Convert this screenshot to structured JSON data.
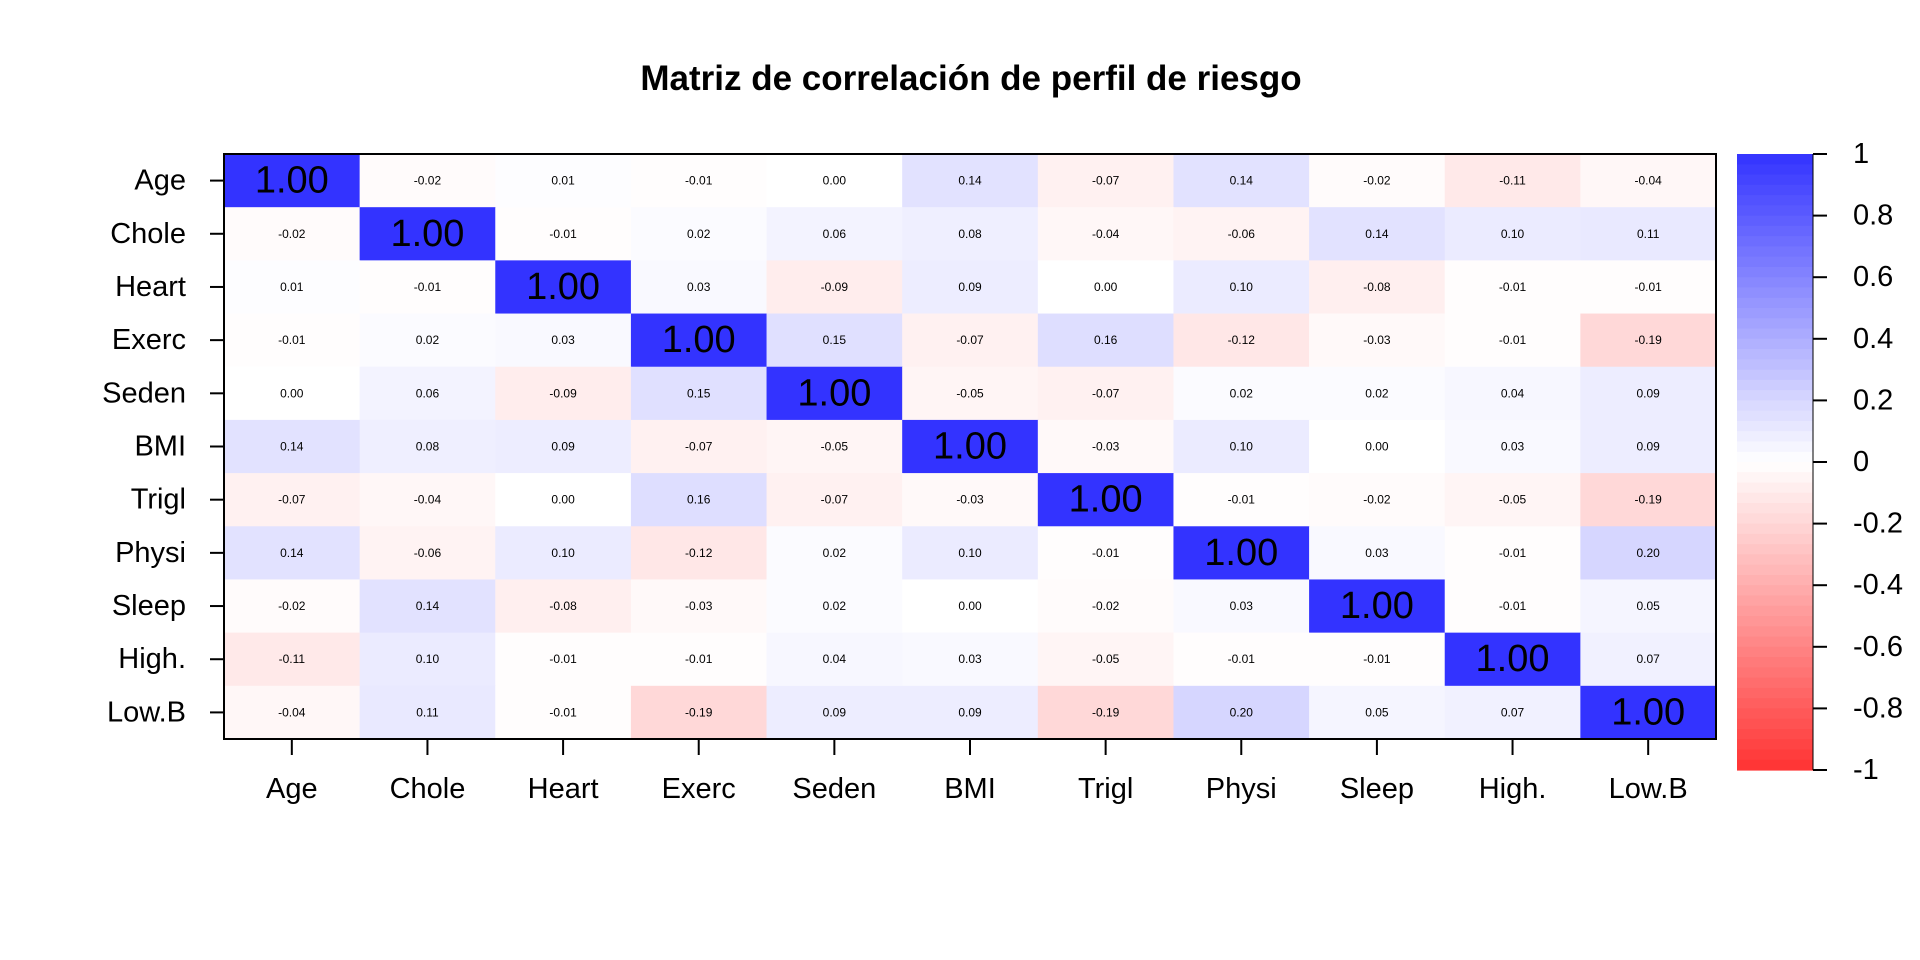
{
  "chart_data": {
    "type": "heatmap",
    "title": "Matriz de correlación de perfil de riesgo",
    "labels": [
      "Age",
      "Chole",
      "Heart",
      "Exerc",
      "Seden",
      "BMI",
      "Trigl",
      "Physi",
      "Sleep",
      "High.",
      "Low.B"
    ],
    "matrix": [
      [
        1.0,
        -0.02,
        0.01,
        -0.01,
        -0.0,
        0.14,
        -0.07,
        0.14,
        -0.02,
        -0.11,
        -0.04
      ],
      [
        -0.02,
        1.0,
        -0.01,
        0.02,
        0.06,
        0.08,
        -0.04,
        -0.06,
        0.14,
        0.1,
        0.11
      ],
      [
        0.01,
        -0.01,
        1.0,
        0.03,
        -0.09,
        0.09,
        0.0,
        0.1,
        -0.08,
        -0.01,
        -0.01
      ],
      [
        -0.01,
        0.02,
        0.03,
        1.0,
        0.15,
        -0.07,
        0.16,
        -0.12,
        -0.03,
        -0.01,
        -0.19
      ],
      [
        -0.0,
        0.06,
        -0.09,
        0.15,
        1.0,
        -0.05,
        -0.07,
        0.02,
        0.02,
        0.04,
        0.09
      ],
      [
        0.14,
        0.08,
        0.09,
        -0.07,
        -0.05,
        1.0,
        -0.03,
        0.1,
        -0.0,
        0.03,
        0.09
      ],
      [
        -0.07,
        -0.04,
        0.0,
        0.16,
        -0.07,
        -0.03,
        1.0,
        -0.01,
        -0.02,
        -0.05,
        -0.19
      ],
      [
        0.14,
        -0.06,
        0.1,
        -0.12,
        0.02,
        0.1,
        -0.01,
        1.0,
        0.03,
        -0.01,
        0.2
      ],
      [
        -0.02,
        0.14,
        -0.08,
        -0.03,
        0.02,
        -0.0,
        -0.02,
        0.03,
        1.0,
        -0.01,
        0.05
      ],
      [
        -0.11,
        0.1,
        -0.01,
        -0.01,
        0.04,
        0.03,
        -0.05,
        -0.01,
        -0.01,
        1.0,
        0.07
      ],
      [
        -0.04,
        0.11,
        -0.01,
        -0.19,
        0.09,
        0.09,
        -0.19,
        0.2,
        0.05,
        0.07,
        1.0
      ]
    ],
    "value_format": "2 decimals",
    "color_scale": {
      "min": -1,
      "max": 1,
      "low_color": "#ff3333",
      "mid_color": "#ffffff",
      "high_color": "#3333ff",
      "ticks": [
        "1",
        "0.8",
        "0.6",
        "0.4",
        "0.2",
        "0",
        "-0.2",
        "-0.4",
        "-0.6",
        "-0.8",
        "-1"
      ]
    },
    "grid": false,
    "legend": "right"
  }
}
